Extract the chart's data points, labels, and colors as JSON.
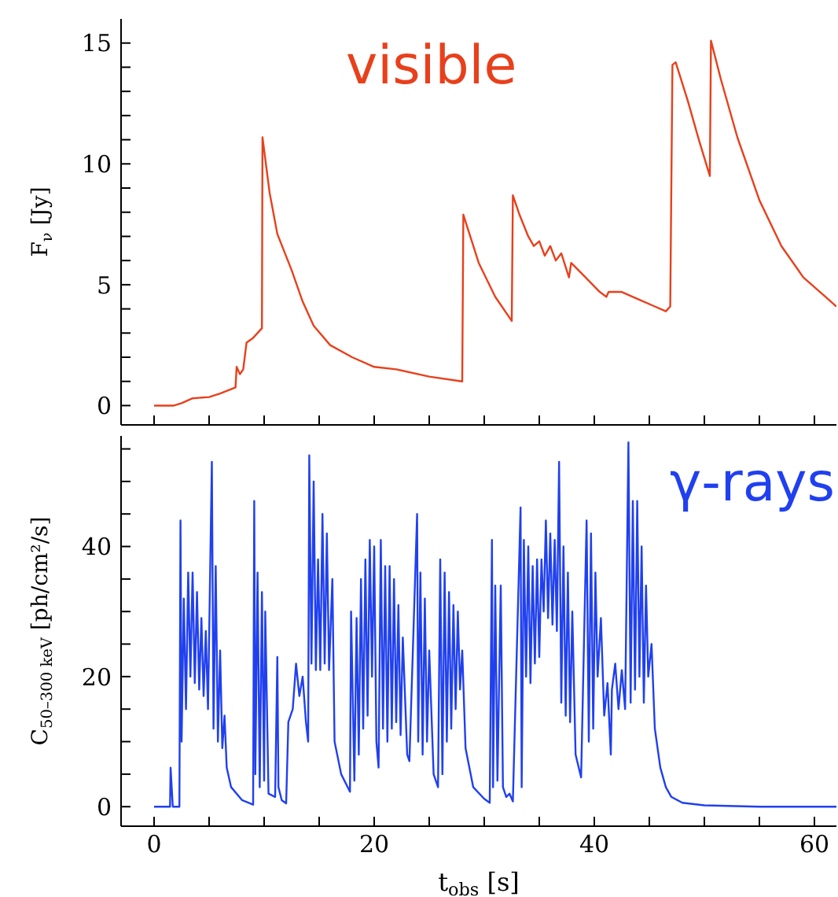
{
  "chart_data": [
    {
      "type": "line",
      "ylabel": "F$_{ν}$ [Jy]",
      "annotations": [
        "visible"
      ],
      "tick_labels": "y",
      "xlim": [
        -3,
        62
      ],
      "xticks": [
        0,
        {
          "value": 5,
          "label": null
        },
        {
          "value": 10,
          "label": null
        },
        {
          "value": 15,
          "label": null
        },
        20,
        {
          "value": 25,
          "label": null
        },
        {
          "value": 30,
          "label": null
        },
        {
          "value": 35,
          "label": null
        },
        40,
        {
          "value": 45,
          "label": null
        },
        {
          "value": 50,
          "label": null
        },
        {
          "value": 55,
          "label": null
        },
        60
      ],
      "ylim": [
        -0.8,
        16
      ],
      "yticks": [
        0,
        {
          "value": 1,
          "label": null
        },
        {
          "value": 2,
          "label": null
        },
        {
          "value": 3,
          "label": null
        },
        {
          "value": 4,
          "label": null
        },
        5,
        {
          "value": 6,
          "label": null
        },
        {
          "value": 7,
          "label": null
        },
        {
          "value": 8,
          "label": null
        },
        {
          "value": 9,
          "label": null
        },
        10,
        {
          "value": 11,
          "label": null
        },
        {
          "value": 12,
          "label": null
        },
        {
          "value": 13,
          "label": null
        },
        {
          "value": 14,
          "label": null
        },
        15
      ],
      "series": [
        {
          "color": "#e8401c",
          "x": [
            0,
            1.8,
            2.5,
            3.5,
            5,
            6,
            7.4,
            7.5,
            7.8,
            8.1,
            8.4,
            9,
            9.8,
            9.85,
            10.5,
            11.2,
            12.5,
            13.5,
            14.5,
            16,
            18,
            20,
            22,
            25,
            28,
            28.1,
            29.5,
            31,
            32.5,
            32.6,
            33.2,
            34,
            34.5,
            35,
            35.5,
            36,
            36.5,
            37,
            37.7,
            37.9,
            39,
            40.5,
            41.1,
            41.3,
            42.5,
            44,
            45.5,
            46.5,
            46.9,
            47.1,
            47.4,
            48.5,
            49.5,
            50.5,
            50.6,
            51.5,
            53,
            55,
            57,
            59,
            61,
            62
          ],
          "values": [
            0,
            0,
            0.1,
            0.3,
            0.35,
            0.5,
            0.75,
            1.6,
            1.3,
            1.5,
            2.6,
            2.8,
            3.2,
            11.1,
            8.8,
            7.1,
            5.6,
            4.3,
            3.3,
            2.5,
            2,
            1.6,
            1.5,
            1.2,
            1,
            7.9,
            5.9,
            4.5,
            3.5,
            8.7,
            7.9,
            7,
            6.6,
            6.8,
            6.2,
            6.6,
            6,
            6.3,
            5.3,
            5.9,
            5.4,
            4.7,
            4.5,
            4.7,
            4.7,
            4.4,
            4.1,
            3.9,
            4.1,
            14.1,
            14.2,
            12.6,
            11,
            9.5,
            15.1,
            13.5,
            11.1,
            8.5,
            6.6,
            5.3,
            4.5,
            4.1
          ]
        }
      ]
    },
    {
      "type": "line",
      "xlabel": "t$_{obs}$ [s]",
      "ylabel": "C$_{50–300 keV}$ [ph/cm²/s]",
      "annotations": [
        "γ-rays"
      ],
      "xlim": [
        -3,
        62
      ],
      "xticks": [
        0,
        {
          "value": 5,
          "label": null
        },
        {
          "value": 10,
          "label": null
        },
        {
          "value": 15,
          "label": null
        },
        20,
        {
          "value": 25,
          "label": null
        },
        {
          "value": 30,
          "label": null
        },
        {
          "value": 35,
          "label": null
        },
        40,
        {
          "value": 45,
          "label": null
        },
        {
          "value": 50,
          "label": null
        },
        {
          "value": 55,
          "label": null
        },
        60
      ],
      "ylim": [
        -3,
        57
      ],
      "yticks": [
        0,
        {
          "value": 5,
          "label": null
        },
        {
          "value": 10,
          "label": null
        },
        {
          "value": 15,
          "label": null
        },
        20,
        {
          "value": 25,
          "label": null
        },
        {
          "value": 30,
          "label": null
        },
        {
          "value": 35,
          "label": null
        },
        40,
        {
          "value": 45,
          "label": null
        },
        {
          "value": 50,
          "label": null
        },
        {
          "value": 55,
          "label": null
        }
      ],
      "series": [
        {
          "color": "#2040f0",
          "x": [
            0,
            1.45,
            1.5,
            1.7,
            2.3,
            2.4,
            2.5,
            2.7,
            2.9,
            3.1,
            3.3,
            3.5,
            3.7,
            3.9,
            4.1,
            4.3,
            4.5,
            4.7,
            4.9,
            5.25,
            5.4,
            5.6,
            5.8,
            6,
            6.2,
            6.4,
            6.6,
            7,
            8,
            9,
            9.1,
            9.2,
            9.4,
            9.6,
            9.8,
            10,
            10.1,
            10.4,
            11,
            11.2,
            11.3,
            11.6,
            12,
            12.2,
            12.6,
            12.9,
            13.2,
            13.5,
            13.8,
            14,
            14.1,
            14.3,
            14.5,
            14.7,
            14.9,
            15.1,
            15.3,
            15.5,
            15.7,
            15.9,
            16.2,
            16.4,
            17,
            17.8,
            17.9,
            18.2,
            18.4,
            18.6,
            18.8,
            19,
            19.2,
            19.4,
            19.6,
            19.8,
            20,
            20.2,
            20.4,
            20.6,
            20.8,
            21,
            21.2,
            21.4,
            21.6,
            21.8,
            22,
            22.2,
            22.4,
            22.6,
            23,
            23.2,
            23.9,
            24,
            24.2,
            24.4,
            24.6,
            24.8,
            25,
            25.4,
            25.8,
            26,
            26.2,
            26.4,
            26.6,
            26.8,
            27,
            27.2,
            27.4,
            27.6,
            27.8,
            28,
            28.3,
            29,
            30,
            30.5,
            30.7,
            30.8,
            31,
            31.2,
            31.5,
            31.7,
            32,
            32.3,
            32.6,
            33.3,
            33.4,
            33.6,
            33.8,
            34,
            34.2,
            34.4,
            34.6,
            34.8,
            35,
            35.2,
            35.4,
            35.6,
            35.8,
            36,
            36.2,
            36.4,
            36.6,
            36.8,
            37,
            37.2,
            37.4,
            37.6,
            37.8,
            38,
            38.3,
            38.8,
            39.3,
            39.5,
            39.7,
            39.9,
            40.1,
            40.3,
            40.6,
            40.9,
            41.2,
            41.5,
            41.6,
            41.9,
            42.2,
            42.5,
            42.8,
            43.1,
            43.3,
            43.5,
            43.7,
            43.9,
            44.1,
            44.3,
            44.5,
            44.7,
            44.9,
            45.2,
            45.5,
            46,
            46.5,
            47,
            48,
            50,
            55,
            62
          ],
          "values": [
            0,
            0,
            6,
            0,
            0,
            44,
            10,
            32,
            15,
            36,
            20,
            36,
            19,
            33,
            18,
            29,
            17,
            27,
            15,
            53,
            12,
            37,
            10,
            24,
            9,
            14,
            6,
            3,
            1,
            0.3,
            47,
            5,
            36,
            3,
            33,
            4,
            30,
            2,
            1.5,
            23,
            3,
            1,
            0.5,
            13,
            15,
            22,
            17,
            20,
            13,
            10,
            54,
            22,
            50,
            21,
            38,
            21,
            45,
            22,
            42,
            21,
            35,
            10,
            5,
            2.3,
            30,
            4,
            29,
            8,
            35,
            12,
            38,
            14,
            41,
            20,
            40,
            10,
            6,
            41,
            12,
            37,
            10,
            37,
            12,
            35,
            13,
            31,
            11,
            26,
            8,
            7,
            45,
            10,
            36,
            8,
            32,
            10,
            24,
            5,
            3,
            38,
            5,
            36,
            10,
            33,
            12,
            31,
            15,
            30,
            18,
            24,
            9,
            3,
            1.2,
            0.6,
            41,
            3,
            34,
            4,
            34,
            3,
            1.5,
            2,
            0.8,
            46,
            3,
            41,
            20,
            40,
            19,
            37,
            22,
            38,
            23,
            38,
            30,
            44,
            29,
            42,
            28,
            41,
            27,
            53,
            16,
            40,
            14,
            36,
            13,
            30,
            8,
            4.5,
            44,
            10,
            42,
            12,
            36,
            20,
            29,
            14,
            19,
            8,
            18,
            22,
            15,
            21,
            15,
            56,
            16,
            47,
            18,
            47,
            20,
            40,
            16,
            34,
            20,
            25,
            12,
            6,
            3,
            1.5,
            0.6,
            0.2,
            0,
            0
          ]
        }
      ]
    }
  ]
}
